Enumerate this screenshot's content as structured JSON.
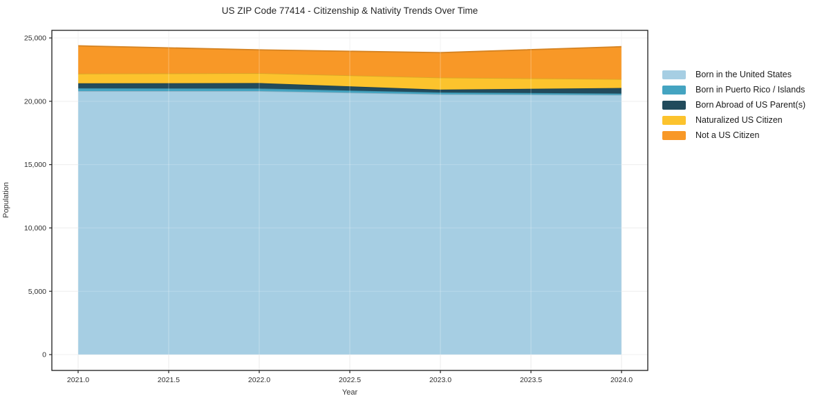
{
  "chart_data": {
    "type": "area",
    "stacked": true,
    "title": "US ZIP Code 77414 - Citizenship & Nativity Trends Over Time",
    "xlabel": "Year",
    "ylabel": "Population",
    "x": [
      2021,
      2022,
      2023,
      2024
    ],
    "series": [
      {
        "name": "Born in the United States",
        "color": "#A6CEE3",
        "values": [
          20810,
          20810,
          20550,
          20500
        ]
      },
      {
        "name": "Born in Puerto Rico / Islands",
        "color": "#44A4C1",
        "values": [
          220,
          200,
          150,
          110
        ]
      },
      {
        "name": "Born Abroad of US Parent(s)",
        "color": "#224B5C",
        "values": [
          390,
          430,
          220,
          440
        ]
      },
      {
        "name": "Naturalized US Citizen",
        "color": "#FCC32D",
        "values": [
          760,
          780,
          950,
          700
        ]
      },
      {
        "name": "Not a US Citizen",
        "color": "#F89827",
        "values": [
          2200,
          1840,
          1970,
          2560
        ]
      }
    ],
    "totals": [
      24380,
      24060,
      23840,
      24310
    ],
    "xticks": [
      {
        "v": 2021.0,
        "label": "2021.0"
      },
      {
        "v": 2021.5,
        "label": "2021.5"
      },
      {
        "v": 2022.0,
        "label": "2022.0"
      },
      {
        "v": 2022.5,
        "label": "2022.5"
      },
      {
        "v": 2023.0,
        "label": "2023.0"
      },
      {
        "v": 2023.5,
        "label": "2023.5"
      },
      {
        "v": 2024.0,
        "label": "2024.0"
      }
    ],
    "yticks": [
      {
        "v": 0,
        "label": "0"
      },
      {
        "v": 5000,
        "label": "5,000"
      },
      {
        "v": 10000,
        "label": "10,000"
      },
      {
        "v": 15000,
        "label": "15,000"
      },
      {
        "v": 20000,
        "label": "20,000"
      },
      {
        "v": 25000,
        "label": "25,000"
      }
    ],
    "xlim": [
      2020.855,
      2024.145
    ],
    "ylim": [
      -1250,
      25600
    ],
    "grid": true,
    "legend_position": "outside-center-right",
    "colors": {
      "grid": "#ebebeb",
      "spine": "#1a1a1a",
      "tick_label": "#2e2e2e"
    }
  }
}
